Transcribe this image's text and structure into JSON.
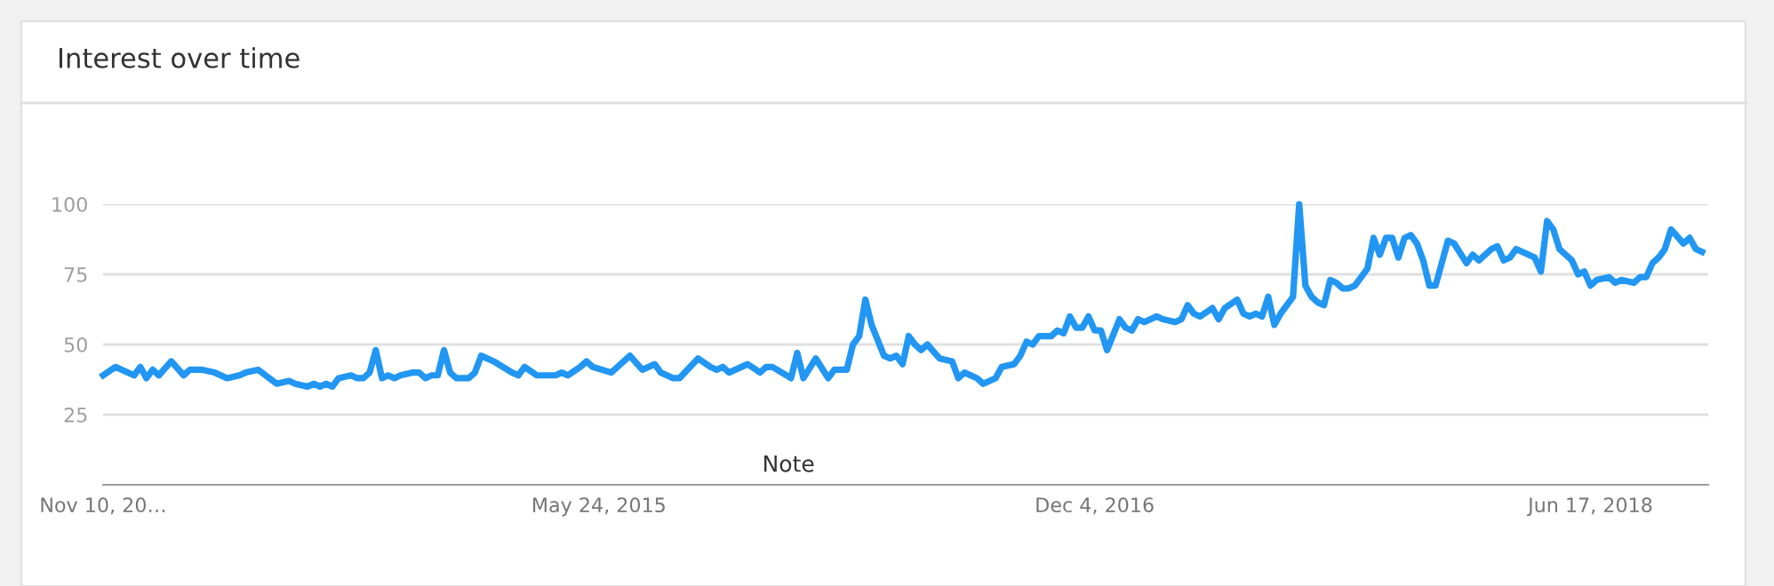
{
  "chart_data": {
    "type": "line",
    "title": "Interest over time",
    "x": [
      "2013-11-10",
      "2013-11-24",
      "2013-12-15",
      "2013-12-22",
      "2013-12-29",
      "2014-01-05",
      "2014-01-12",
      "2014-01-26",
      "2014-02-09",
      "2014-02-16",
      "2014-03-02",
      "2014-03-16",
      "2014-03-30",
      "2014-04-13",
      "2014-04-20",
      "2014-05-04",
      "2014-05-25",
      "2014-06-08",
      "2014-06-15",
      "2014-06-29",
      "2014-07-06",
      "2014-07-13",
      "2014-07-20",
      "2014-07-27",
      "2014-08-03",
      "2014-08-17",
      "2014-08-24",
      "2014-08-31",
      "2014-09-07",
      "2014-09-14",
      "2014-09-21",
      "2014-09-28",
      "2014-10-05",
      "2014-10-12",
      "2014-10-26",
      "2014-11-02",
      "2014-11-09",
      "2014-11-16",
      "2014-11-23",
      "2014-11-30",
      "2014-12-07",
      "2014-12-14",
      "2014-12-28",
      "2015-01-04",
      "2015-01-11",
      "2015-01-25",
      "2015-02-15",
      "2015-02-22",
      "2015-03-01",
      "2015-03-15",
      "2015-04-05",
      "2015-04-12",
      "2015-04-19",
      "2015-05-03",
      "2015-05-10",
      "2015-05-17",
      "2015-06-07",
      "2015-06-28",
      "2015-07-12",
      "2015-07-26",
      "2015-08-02",
      "2015-08-16",
      "2015-08-23",
      "2015-09-13",
      "2015-09-27",
      "2015-10-04",
      "2015-10-11",
      "2015-10-18",
      "2015-11-08",
      "2015-11-22",
      "2015-11-29",
      "2015-12-06",
      "2015-12-27",
      "2016-01-03",
      "2016-01-10",
      "2016-01-24",
      "2016-02-07",
      "2016-02-14",
      "2016-02-28",
      "2016-03-06",
      "2016-03-13",
      "2016-03-20",
      "2016-03-27",
      "2016-04-10",
      "2016-04-17",
      "2016-04-24",
      "2016-05-01",
      "2016-05-08",
      "2016-05-15",
      "2016-05-22",
      "2016-05-29",
      "2016-06-12",
      "2016-06-26",
      "2016-07-03",
      "2016-07-10",
      "2016-07-24",
      "2016-07-31",
      "2016-08-14",
      "2016-08-21",
      "2016-09-04",
      "2016-09-11",
      "2016-09-18",
      "2016-09-25",
      "2016-10-02",
      "2016-10-16",
      "2016-10-23",
      "2016-10-30",
      "2016-11-06",
      "2016-11-13",
      "2016-11-20",
      "2016-11-27",
      "2016-12-04",
      "2016-12-11",
      "2016-12-18",
      "2017-01-01",
      "2017-01-08",
      "2017-01-15",
      "2017-01-22",
      "2017-01-29",
      "2017-02-12",
      "2017-02-19",
      "2017-03-05",
      "2017-03-12",
      "2017-03-19",
      "2017-03-26",
      "2017-04-02",
      "2017-04-16",
      "2017-04-23",
      "2017-04-30",
      "2017-05-14",
      "2017-05-21",
      "2017-05-28",
      "2017-06-04",
      "2017-06-11",
      "2017-06-18",
      "2017-06-25",
      "2017-07-02",
      "2017-07-09",
      "2017-07-16",
      "2017-07-23",
      "2017-07-30",
      "2017-08-06",
      "2017-08-13",
      "2017-08-20",
      "2017-08-27",
      "2017-09-03",
      "2017-09-10",
      "2017-09-17",
      "2017-09-24",
      "2017-10-08",
      "2017-10-15",
      "2017-10-22",
      "2017-10-29",
      "2017-11-05",
      "2017-11-12",
      "2017-11-19",
      "2017-11-26",
      "2017-12-03",
      "2017-12-10",
      "2017-12-17",
      "2017-12-24",
      "2017-12-31",
      "2018-01-07",
      "2018-01-14",
      "2018-01-28",
      "2018-02-04",
      "2018-02-11",
      "2018-02-25",
      "2018-03-04",
      "2018-03-11",
      "2018-03-18",
      "2018-03-25",
      "2018-04-15",
      "2018-04-22",
      "2018-04-29",
      "2018-05-06",
      "2018-05-13",
      "2018-05-20",
      "2018-05-27",
      "2018-06-03",
      "2018-06-10",
      "2018-06-17",
      "2018-06-24",
      "2018-07-08",
      "2018-07-15",
      "2018-07-22",
      "2018-08-05",
      "2018-08-12",
      "2018-08-19",
      "2018-08-26",
      "2018-09-02",
      "2018-09-09",
      "2018-09-16",
      "2018-09-30",
      "2018-10-07",
      "2018-10-14",
      "2018-10-21"
    ],
    "series": [
      {
        "color": "#2196f3",
        "values": [
          39,
          42,
          39,
          42,
          38,
          41,
          39,
          44,
          39,
          41,
          41,
          40,
          38,
          39,
          40,
          41,
          36,
          37,
          36,
          35,
          36,
          35,
          36,
          35,
          38,
          39,
          38,
          38,
          40,
          48,
          38,
          39,
          38,
          39,
          40,
          40,
          38,
          39,
          39,
          48,
          40,
          38,
          38,
          40,
          46,
          44,
          40,
          39,
          42,
          39,
          39,
          40,
          39,
          42,
          44,
          42,
          40,
          46,
          41,
          43,
          40,
          38,
          38,
          45,
          42,
          41,
          42,
          40,
          43,
          40,
          42,
          42,
          38,
          47,
          38,
          45,
          38,
          41,
          41,
          50,
          53,
          66,
          57,
          46,
          45,
          46,
          43,
          53,
          50,
          48,
          50,
          45,
          44,
          38,
          40,
          38,
          36,
          38,
          42,
          43,
          46,
          51,
          50,
          53,
          53,
          55,
          54,
          60,
          56,
          56,
          60,
          55,
          55,
          48,
          59,
          56,
          55,
          59,
          58,
          60,
          59,
          58,
          59,
          64,
          61,
          60,
          63,
          59,
          63,
          66,
          61,
          60,
          61,
          60,
          67,
          57,
          61,
          64,
          67,
          100,
          71,
          67,
          65,
          64,
          73,
          72,
          70,
          70,
          71,
          77,
          88,
          82,
          88,
          88,
          81,
          88,
          89,
          86,
          80,
          71,
          71,
          79,
          87,
          86,
          79,
          82,
          80,
          84,
          85,
          80,
          81,
          84,
          81,
          76,
          94,
          91,
          84,
          82,
          80,
          75,
          76,
          71,
          73,
          74,
          72,
          73,
          72,
          74,
          74,
          79,
          81,
          84,
          91,
          86,
          88,
          84,
          83
        ]
      }
    ],
    "xlim": [
      "2013-11-10",
      "2018-10-28"
    ],
    "xticks": [
      {
        "value": "2013-11-10",
        "label": "Nov 10, 20…"
      },
      {
        "value": "2015-05-24",
        "label": "May 24, 2015"
      },
      {
        "value": "2016-12-04",
        "label": "Dec 4, 2016"
      },
      {
        "value": "2018-06-17",
        "label": "Jun 17, 2018"
      }
    ],
    "ylim": [
      0,
      100
    ],
    "yticks": [
      25,
      50,
      75,
      100
    ],
    "grid": "y",
    "legend": false,
    "marker": "none",
    "line_style": "solid",
    "annotations": [
      "Note"
    ]
  }
}
